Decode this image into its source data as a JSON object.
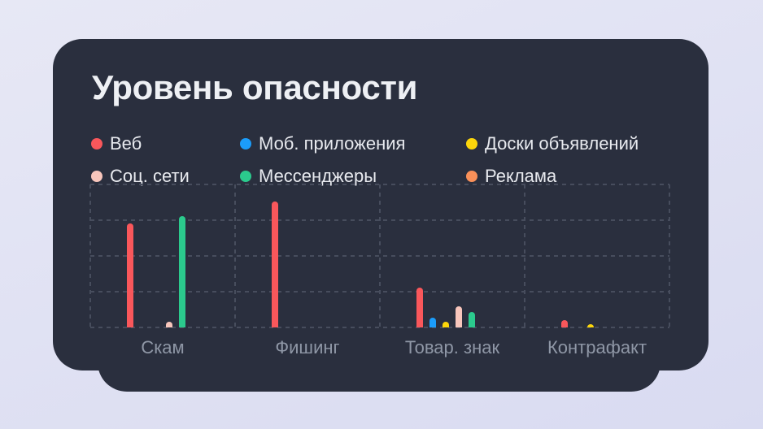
{
  "card": {
    "title": "Уровень опасности"
  },
  "chart_data": {
    "type": "bar",
    "title": "Уровень опасности",
    "categories": [
      "Скам",
      "Фишинг",
      "Товар. знак",
      "Контрафакт"
    ],
    "category_keys": [
      "scam",
      "phishing",
      "trademark",
      "counterfeit"
    ],
    "series": [
      {
        "key": "web",
        "name": "Веб",
        "color": "#F9575B",
        "values": [
          73,
          88,
          28,
          5
        ]
      },
      {
        "key": "mobile-apps",
        "name": "Моб. приложения",
        "color": "#1B9DFB",
        "values": [
          0,
          0,
          7,
          0
        ]
      },
      {
        "key": "classifieds",
        "name": "Доски объявлений",
        "color": "#FCD60B",
        "values": [
          0,
          0,
          4,
          2
        ]
      },
      {
        "key": "social-networks",
        "name": "Соц. сети",
        "color": "#F8C6BC",
        "values": [
          4,
          0,
          15,
          0
        ]
      },
      {
        "key": "messengers",
        "name": "Мессенджеры",
        "color": "#2BCA8D",
        "values": [
          78,
          0,
          11,
          0
        ]
      },
      {
        "key": "ads",
        "name": "Реклама",
        "color": "#F99059",
        "values": [
          0,
          0,
          0,
          0
        ]
      }
    ],
    "xlabel": "",
    "ylabel": "",
    "ylim": [
      0,
      100
    ],
    "value_unit": "relative level, estimated % of chart height (no y-axis labels shown)",
    "grid": "dashed",
    "legend_position": "top"
  },
  "colors": {
    "page_bg_top": "#E7E8F5",
    "page_bg_bottom": "#D9DBF1",
    "card_bg": "#2A2F3E",
    "grid_line": "#474D5D",
    "title_text": "#EEF0F4",
    "legend_text": "#E8EAEF",
    "category_text": "#8F97A6"
  }
}
